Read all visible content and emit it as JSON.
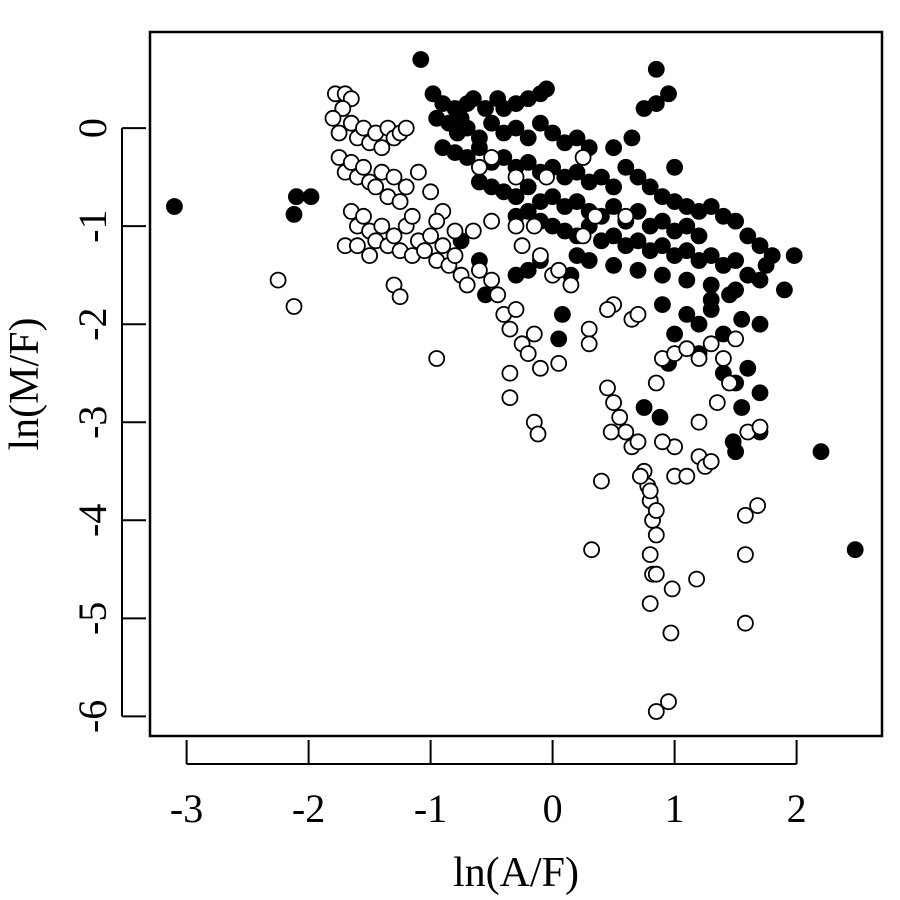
{
  "chart_data": {
    "type": "scatter",
    "title": "",
    "xlabel": "ln(A/F)",
    "ylabel": "ln(M/F)",
    "xlim": [
      -3.3,
      2.7
    ],
    "ylim": [
      -6.2,
      0.98
    ],
    "xticks": [
      -3,
      -2,
      -1,
      0,
      1,
      2
    ],
    "yticks": [
      -6,
      -5,
      -4,
      -3,
      -2,
      -1,
      0
    ],
    "xtick_labels": [
      "-3",
      "-2",
      "-1",
      "0",
      "1",
      "2"
    ],
    "ytick_labels": [
      "-6",
      "-5",
      "-4",
      "-3",
      "-2",
      "-1",
      "0"
    ],
    "grid": false,
    "legend": "none",
    "colors": {
      "filled": "#000000",
      "open_fill": "#ffffff",
      "stroke": "#000000"
    },
    "series": [
      {
        "style": "filled",
        "points": [
          [
            -3.1,
            -0.8
          ],
          [
            -2.1,
            -0.7
          ],
          [
            -2.12,
            -0.88
          ],
          [
            -1.98,
            -0.7
          ],
          [
            -1.08,
            0.7
          ],
          [
            -0.98,
            0.35
          ],
          [
            -0.9,
            0.25
          ],
          [
            -0.8,
            0.2
          ],
          [
            -0.75,
            0.1
          ],
          [
            -0.7,
            0.25
          ],
          [
            -0.65,
            0.3
          ],
          [
            -0.55,
            0.2
          ],
          [
            -0.45,
            0.3
          ],
          [
            -0.4,
            0.2
          ],
          [
            -0.3,
            0.25
          ],
          [
            -0.2,
            0.3
          ],
          [
            -0.1,
            0.35
          ],
          [
            -0.05,
            0.4
          ],
          [
            -0.95,
            0.1
          ],
          [
            -0.85,
            0.05
          ],
          [
            -0.78,
            -0.05
          ],
          [
            -0.7,
            0.0
          ],
          [
            -0.6,
            -0.1
          ],
          [
            -0.5,
            0.05
          ],
          [
            -0.4,
            -0.05
          ],
          [
            -0.3,
            0.0
          ],
          [
            -0.2,
            -0.1
          ],
          [
            -0.1,
            0.05
          ],
          [
            0.0,
            -0.05
          ],
          [
            0.1,
            -0.15
          ],
          [
            0.2,
            -0.1
          ],
          [
            0.3,
            -0.2
          ],
          [
            -0.9,
            -0.2
          ],
          [
            -0.8,
            -0.25
          ],
          [
            -0.7,
            -0.3
          ],
          [
            -0.6,
            -0.2
          ],
          [
            -0.5,
            -0.35
          ],
          [
            -0.4,
            -0.3
          ],
          [
            -0.3,
            -0.4
          ],
          [
            -0.2,
            -0.35
          ],
          [
            -0.1,
            -0.45
          ],
          [
            0.0,
            -0.4
          ],
          [
            0.1,
            -0.5
          ],
          [
            0.2,
            -0.45
          ],
          [
            0.3,
            -0.55
          ],
          [
            0.4,
            -0.5
          ],
          [
            0.5,
            -0.6
          ],
          [
            -0.6,
            -0.55
          ],
          [
            -0.5,
            -0.6
          ],
          [
            -0.4,
            -0.65
          ],
          [
            -0.3,
            -0.7
          ],
          [
            -0.2,
            -0.6
          ],
          [
            -0.1,
            -0.75
          ],
          [
            0.0,
            -0.7
          ],
          [
            0.1,
            -0.8
          ],
          [
            0.2,
            -0.75
          ],
          [
            0.3,
            -0.85
          ],
          [
            0.4,
            -0.9
          ],
          [
            0.5,
            -0.8
          ],
          [
            0.6,
            -0.95
          ],
          [
            0.7,
            -0.85
          ],
          [
            0.8,
            -1.0
          ],
          [
            0.9,
            -0.95
          ],
          [
            1.0,
            -1.05
          ],
          [
            1.1,
            -1.0
          ],
          [
            1.2,
            -1.1
          ],
          [
            -0.3,
            -0.9
          ],
          [
            -0.2,
            -0.85
          ],
          [
            -0.1,
            -0.95
          ],
          [
            0.0,
            -1.0
          ],
          [
            0.1,
            -1.05
          ],
          [
            0.2,
            -1.1
          ],
          [
            0.3,
            -1.0
          ],
          [
            0.4,
            -1.15
          ],
          [
            0.5,
            -1.1
          ],
          [
            0.6,
            -1.2
          ],
          [
            0.7,
            -1.15
          ],
          [
            0.8,
            -1.25
          ],
          [
            0.9,
            -1.2
          ],
          [
            1.0,
            -1.3
          ],
          [
            1.1,
            -1.25
          ],
          [
            1.2,
            -1.35
          ],
          [
            1.3,
            -1.3
          ],
          [
            1.4,
            -1.4
          ],
          [
            1.5,
            -1.35
          ],
          [
            0.2,
            -1.3
          ],
          [
            0.3,
            -1.35
          ],
          [
            0.5,
            -1.4
          ],
          [
            0.7,
            -1.45
          ],
          [
            0.9,
            -1.5
          ],
          [
            1.1,
            -1.55
          ],
          [
            1.3,
            -1.6
          ],
          [
            1.5,
            -1.65
          ],
          [
            1.7,
            -1.55
          ],
          [
            1.9,
            -1.65
          ],
          [
            0.6,
            -0.4
          ],
          [
            0.7,
            -0.5
          ],
          [
            0.8,
            -0.6
          ],
          [
            0.9,
            -0.7
          ],
          [
            1.0,
            -0.75
          ],
          [
            1.1,
            -0.8
          ],
          [
            1.2,
            -0.85
          ],
          [
            1.3,
            -0.8
          ],
          [
            1.4,
            -0.9
          ],
          [
            1.5,
            -0.95
          ],
          [
            1.6,
            -1.1
          ],
          [
            1.7,
            -1.2
          ],
          [
            1.8,
            -1.3
          ],
          [
            1.98,
            -1.3
          ],
          [
            0.85,
            0.6
          ],
          [
            0.85,
            0.25
          ],
          [
            0.75,
            0.2
          ],
          [
            0.95,
            0.35
          ],
          [
            1.0,
            -0.4
          ],
          [
            0.65,
            -0.1
          ],
          [
            0.5,
            -0.2
          ],
          [
            0.9,
            -1.8
          ],
          [
            1.1,
            -1.9
          ],
          [
            1.2,
            -2.0
          ],
          [
            1.3,
            -1.85
          ],
          [
            1.4,
            -2.1
          ],
          [
            1.55,
            -1.95
          ],
          [
            1.7,
            -2.0
          ],
          [
            1.0,
            -2.1
          ],
          [
            1.2,
            -2.3
          ],
          [
            1.4,
            -2.5
          ],
          [
            1.5,
            -2.6
          ],
          [
            1.6,
            -2.45
          ],
          [
            1.55,
            -2.85
          ],
          [
            1.48,
            -3.2
          ],
          [
            1.5,
            -3.3
          ],
          [
            1.7,
            -2.7
          ],
          [
            1.7,
            -3.1
          ],
          [
            0.88,
            -2.95
          ],
          [
            0.75,
            -2.85
          ],
          [
            0.95,
            -2.4
          ],
          [
            2.2,
            -3.3
          ],
          [
            2.48,
            -4.3
          ],
          [
            -0.3,
            -1.5
          ],
          [
            -0.2,
            -1.45
          ],
          [
            -0.1,
            -1.35
          ],
          [
            0.08,
            -1.9
          ],
          [
            0.05,
            -2.15
          ],
          [
            0.15,
            -1.5
          ],
          [
            -0.55,
            -1.7
          ],
          [
            -0.6,
            -1.35
          ],
          [
            -0.75,
            -1.15
          ],
          [
            1.3,
            -1.75
          ],
          [
            1.45,
            -1.7
          ],
          [
            1.6,
            -1.5
          ],
          [
            1.75,
            -1.4
          ]
        ]
      },
      {
        "style": "open",
        "points": [
          [
            -2.25,
            -1.55
          ],
          [
            -2.12,
            -1.82
          ],
          [
            -1.78,
            0.35
          ],
          [
            -1.7,
            0.35
          ],
          [
            -1.65,
            0.3
          ],
          [
            -1.72,
            0.2
          ],
          [
            -1.8,
            0.1
          ],
          [
            -1.75,
            -0.05
          ],
          [
            -1.65,
            0.05
          ],
          [
            -1.6,
            -0.1
          ],
          [
            -1.55,
            0.0
          ],
          [
            -1.5,
            -0.15
          ],
          [
            -1.45,
            -0.05
          ],
          [
            -1.4,
            -0.2
          ],
          [
            -1.35,
            0.0
          ],
          [
            -1.3,
            -0.1
          ],
          [
            -1.25,
            -0.05
          ],
          [
            -1.2,
            0.0
          ],
          [
            -1.75,
            -0.3
          ],
          [
            -1.7,
            -0.45
          ],
          [
            -1.65,
            -0.35
          ],
          [
            -1.6,
            -0.5
          ],
          [
            -1.55,
            -0.4
          ],
          [
            -1.5,
            -0.55
          ],
          [
            -1.45,
            -0.6
          ],
          [
            -1.4,
            -0.45
          ],
          [
            -1.35,
            -0.7
          ],
          [
            -1.3,
            -0.5
          ],
          [
            -1.25,
            -0.75
          ],
          [
            -1.2,
            -0.6
          ],
          [
            -1.65,
            -0.85
          ],
          [
            -1.6,
            -1.0
          ],
          [
            -1.55,
            -0.9
          ],
          [
            -1.5,
            -1.05
          ],
          [
            -1.45,
            -1.15
          ],
          [
            -1.4,
            -1.0
          ],
          [
            -1.35,
            -1.2
          ],
          [
            -1.3,
            -1.1
          ],
          [
            -1.25,
            -1.25
          ],
          [
            -1.2,
            -1.0
          ],
          [
            -1.15,
            -1.3
          ],
          [
            -1.1,
            -1.15
          ],
          [
            -1.05,
            -1.25
          ],
          [
            -1.0,
            -1.1
          ],
          [
            -0.95,
            -1.35
          ],
          [
            -0.9,
            -1.2
          ],
          [
            -0.85,
            -1.4
          ],
          [
            -0.8,
            -1.3
          ],
          [
            -1.7,
            -1.2
          ],
          [
            -1.6,
            -1.2
          ],
          [
            -1.5,
            -1.3
          ],
          [
            -1.3,
            -1.6
          ],
          [
            -1.25,
            -1.72
          ],
          [
            -0.9,
            -0.85
          ],
          [
            -0.95,
            -0.95
          ],
          [
            -1.0,
            -0.65
          ],
          [
            -1.1,
            -0.45
          ],
          [
            -1.15,
            -0.9
          ],
          [
            -0.75,
            -1.5
          ],
          [
            -0.7,
            -1.6
          ],
          [
            -0.6,
            -1.45
          ],
          [
            -0.5,
            -1.55
          ],
          [
            -0.45,
            -1.7
          ],
          [
            -0.4,
            -1.9
          ],
          [
            -0.35,
            -2.05
          ],
          [
            -0.3,
            -1.85
          ],
          [
            -0.25,
            -2.2
          ],
          [
            -0.2,
            -2.3
          ],
          [
            -0.15,
            -2.1
          ],
          [
            -0.1,
            -2.45
          ],
          [
            -0.25,
            -1.2
          ],
          [
            -0.15,
            -1.0
          ],
          [
            -0.1,
            -1.3
          ],
          [
            0.0,
            -1.5
          ],
          [
            0.05,
            -1.45
          ],
          [
            0.15,
            -1.6
          ],
          [
            0.25,
            -1.1
          ],
          [
            0.35,
            -0.9
          ],
          [
            -0.6,
            -0.4
          ],
          [
            -0.5,
            -0.3
          ],
          [
            -0.3,
            -0.5
          ],
          [
            -0.05,
            -0.5
          ],
          [
            0.25,
            -0.3
          ],
          [
            0.6,
            -0.9
          ],
          [
            0.5,
            -1.8
          ],
          [
            0.45,
            -1.85
          ],
          [
            0.65,
            -1.95
          ],
          [
            0.7,
            -1.9
          ],
          [
            0.3,
            -2.05
          ],
          [
            0.3,
            -2.2
          ],
          [
            0.05,
            -2.4
          ],
          [
            -0.35,
            -2.75
          ],
          [
            -0.95,
            -2.35
          ],
          [
            -0.35,
            -2.5
          ],
          [
            -0.15,
            -3.0
          ],
          [
            -0.12,
            -3.12
          ],
          [
            0.45,
            -2.65
          ],
          [
            0.5,
            -2.8
          ],
          [
            0.55,
            -2.95
          ],
          [
            0.6,
            -3.1
          ],
          [
            0.65,
            -3.25
          ],
          [
            0.7,
            -3.2
          ],
          [
            0.48,
            -3.1
          ],
          [
            0.75,
            -3.5
          ],
          [
            0.78,
            -3.65
          ],
          [
            0.8,
            -3.8
          ],
          [
            0.82,
            -4.0
          ],
          [
            0.85,
            -3.9
          ],
          [
            0.85,
            -4.15
          ],
          [
            0.8,
            -4.35
          ],
          [
            0.82,
            -4.55
          ],
          [
            0.85,
            -4.55
          ],
          [
            0.8,
            -4.85
          ],
          [
            0.97,
            -5.15
          ],
          [
            0.98,
            -4.7
          ],
          [
            1.18,
            -4.6
          ],
          [
            0.85,
            -5.95
          ],
          [
            0.95,
            -5.85
          ],
          [
            1.58,
            -5.05
          ],
          [
            1.58,
            -4.35
          ],
          [
            1.58,
            -3.95
          ],
          [
            1.68,
            -3.85
          ],
          [
            1.6,
            -3.1
          ],
          [
            1.7,
            -3.05
          ],
          [
            0.32,
            -4.3
          ],
          [
            0.4,
            -3.6
          ],
          [
            1.0,
            -3.25
          ],
          [
            1.0,
            -3.55
          ],
          [
            1.1,
            -3.55
          ],
          [
            1.2,
            -3.35
          ],
          [
            1.25,
            -3.45
          ],
          [
            1.3,
            -3.4
          ],
          [
            0.85,
            -2.6
          ],
          [
            0.9,
            -2.35
          ],
          [
            1.0,
            -2.3
          ],
          [
            1.1,
            -2.25
          ],
          [
            1.2,
            -2.35
          ],
          [
            1.3,
            -2.2
          ],
          [
            1.4,
            -2.35
          ],
          [
            1.5,
            -2.15
          ],
          [
            1.35,
            -2.8
          ],
          [
            1.45,
            -2.6
          ],
          [
            1.2,
            -3.0
          ],
          [
            0.9,
            -3.2
          ],
          [
            0.8,
            -3.7
          ],
          [
            0.72,
            -3.55
          ],
          [
            -0.5,
            -0.95
          ],
          [
            -0.65,
            -1.05
          ],
          [
            -0.8,
            -1.05
          ],
          [
            -0.3,
            -1.0
          ]
        ]
      }
    ]
  }
}
